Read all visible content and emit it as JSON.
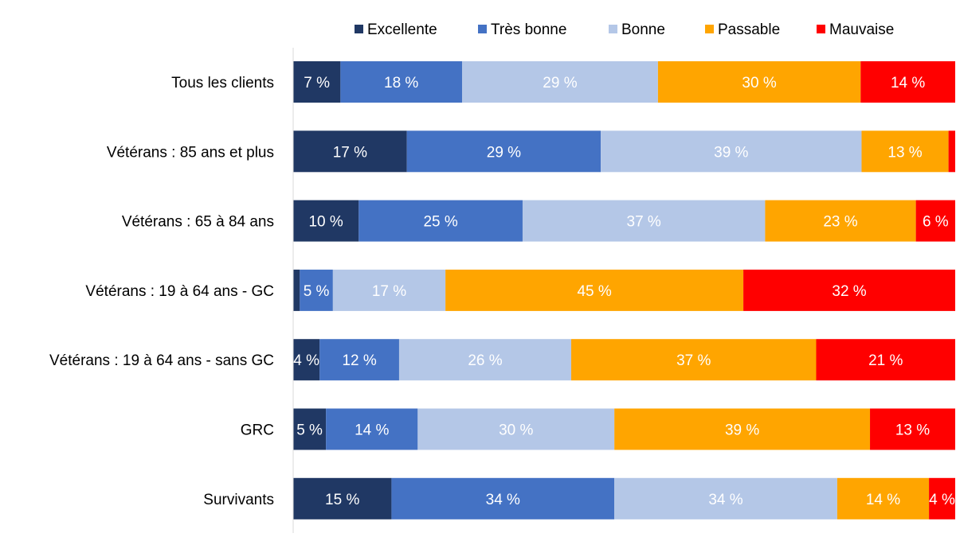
{
  "chart_data": {
    "type": "bar",
    "orientation": "horizontal",
    "stacked": "100%",
    "title": "",
    "xlabel": "",
    "ylabel": "",
    "grid": false,
    "legend_position": "top",
    "categories": [
      "Tous les clients",
      "Vétérans : 85 ans et plus",
      "Vétérans : 65 à 84 ans",
      "Vétérans : 19 à 64 ans - GC",
      "Vétérans : 19 à 64 ans - sans GC",
      "GRC",
      "Survivants"
    ],
    "series": [
      {
        "name": "Excellente",
        "color": "#203864",
        "values": [
          7,
          17,
          10,
          1,
          4,
          5,
          15
        ],
        "labels": [
          "7 %",
          "17 %",
          "10 %",
          null,
          "4 %",
          "5 %",
          "15 %"
        ]
      },
      {
        "name": "Très bonne",
        "color": "#4472C4",
        "values": [
          18,
          29,
          25,
          5,
          12,
          14,
          34
        ],
        "labels": [
          "18 %",
          "29 %",
          "25 %",
          "5 %",
          "12 %",
          "14 %",
          "34 %"
        ]
      },
      {
        "name": "Bonne",
        "color": "#B4C7E7",
        "values": [
          29,
          39,
          37,
          17,
          26,
          30,
          34
        ],
        "labels": [
          "29 %",
          "39 %",
          "37 %",
          "17 %",
          "26 %",
          "30 %",
          "34 %"
        ]
      },
      {
        "name": "Passable",
        "color": "#FFA500",
        "values": [
          30,
          13,
          23,
          45,
          37,
          39,
          14
        ],
        "labels": [
          "30 %",
          "13 %",
          "23 %",
          "45 %",
          "37 %",
          "39 %",
          "14 %"
        ]
      },
      {
        "name": "Mauvaise",
        "color": "#FF0000",
        "values": [
          14,
          1,
          6,
          32,
          21,
          13,
          4
        ],
        "labels": [
          "14 %",
          null,
          "6 %",
          "32 %",
          "21 %",
          "13 %",
          "4 %"
        ]
      }
    ]
  }
}
